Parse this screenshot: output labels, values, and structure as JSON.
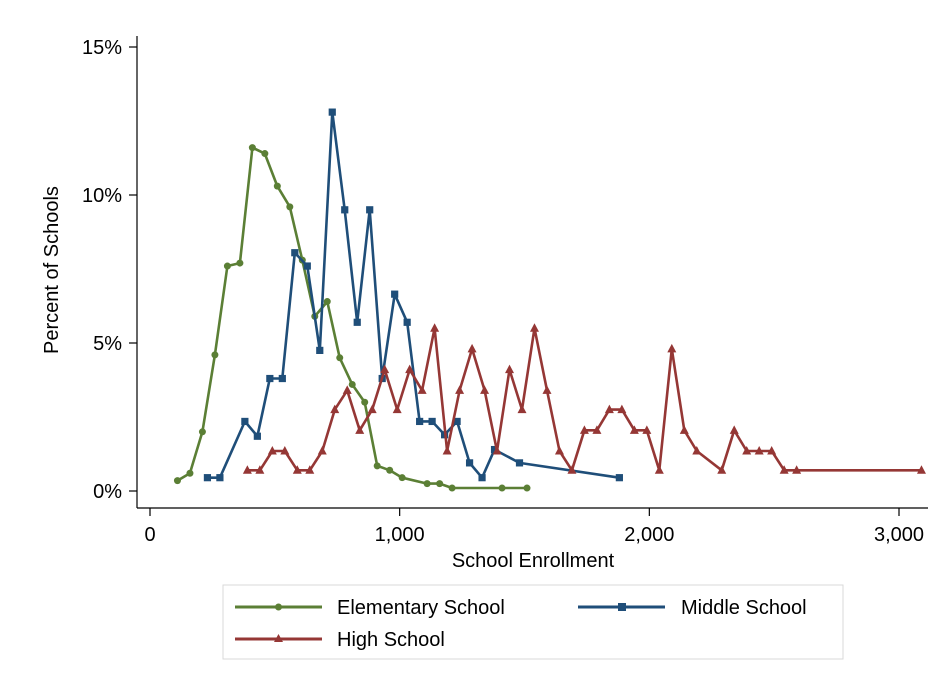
{
  "chart_data": {
    "type": "line",
    "xlabel": "School Enrollment",
    "ylabel": "Percent of Schools",
    "xlim": [
      0,
      3100
    ],
    "ylim": [
      0,
      15
    ],
    "x_ticks": [
      0,
      1000,
      2000,
      3000
    ],
    "x_tick_labels": [
      "0",
      "1,000",
      "2,000",
      "3,000"
    ],
    "y_ticks": [
      0,
      5,
      10,
      15
    ],
    "y_tick_labels": [
      "0%",
      "5%",
      "10%",
      "15%"
    ],
    "grid": false,
    "legend_position": "bottom",
    "series": [
      {
        "name": "Elementary School",
        "color": "#5b7f35",
        "marker": "circle",
        "x": [
          110,
          160,
          210,
          260,
          310,
          360,
          410,
          460,
          510,
          560,
          610,
          660,
          710,
          760,
          810,
          860,
          910,
          960,
          1010,
          1110,
          1160,
          1210,
          1410,
          1510
        ],
        "y": [
          0.35,
          0.6,
          2.0,
          4.6,
          7.6,
          7.7,
          11.6,
          11.4,
          10.3,
          9.6,
          7.8,
          5.9,
          6.4,
          4.5,
          3.6,
          3.0,
          0.85,
          0.7,
          0.45,
          0.25,
          0.25,
          0.1,
          0.1,
          0.1
        ]
      },
      {
        "name": "Middle School",
        "color": "#1f4e79",
        "marker": "square",
        "x": [
          230,
          280,
          380,
          430,
          480,
          530,
          580,
          630,
          680,
          730,
          780,
          830,
          880,
          930,
          980,
          1030,
          1080,
          1130,
          1180,
          1230,
          1280,
          1330,
          1380,
          1480,
          1880
        ],
        "y": [
          0.45,
          0.45,
          2.35,
          1.85,
          3.8,
          3.8,
          8.05,
          7.6,
          4.75,
          12.8,
          9.5,
          5.7,
          9.5,
          3.8,
          6.65,
          5.7,
          2.35,
          2.35,
          1.9,
          2.35,
          0.95,
          0.45,
          1.4,
          0.95,
          0.45
        ]
      },
      {
        "name": "High School",
        "color": "#953735",
        "marker": "triangle",
        "x": [
          390,
          440,
          490,
          540,
          590,
          640,
          690,
          740,
          790,
          840,
          890,
          940,
          990,
          1040,
          1090,
          1140,
          1190,
          1240,
          1290,
          1340,
          1390,
          1440,
          1490,
          1540,
          1590,
          1640,
          1690,
          1740,
          1790,
          1840,
          1890,
          1940,
          1990,
          2040,
          2090,
          2140,
          2190,
          2290,
          2340,
          2390,
          2440,
          2490,
          2540,
          2590,
          3090
        ],
        "y": [
          0.7,
          0.7,
          1.35,
          1.35,
          0.7,
          0.7,
          1.35,
          2.75,
          3.4,
          2.05,
          2.75,
          4.1,
          2.75,
          4.1,
          3.4,
          5.5,
          1.35,
          3.4,
          4.8,
          3.4,
          1.35,
          4.1,
          2.75,
          5.5,
          3.4,
          1.35,
          0.7,
          2.05,
          2.05,
          2.75,
          2.75,
          2.05,
          2.05,
          0.7,
          4.8,
          2.05,
          1.35,
          0.7,
          2.05,
          1.35,
          1.35,
          1.35,
          0.7,
          0.7,
          0.7
        ]
      }
    ]
  }
}
